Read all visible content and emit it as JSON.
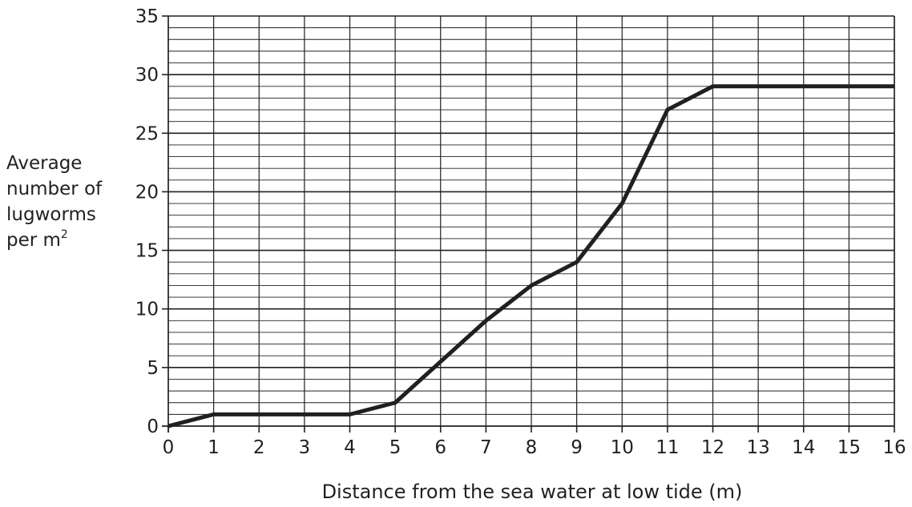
{
  "chart_data": {
    "type": "line",
    "title": "",
    "xlabel": "Distance from the sea water at low tide (m)",
    "ylabel_lines": [
      "Average",
      "number of",
      "lugworms",
      "per m"
    ],
    "ylabel_superscript": "2",
    "xlim": [
      0,
      16
    ],
    "ylim": [
      0,
      35
    ],
    "x_ticks": [
      0,
      1,
      2,
      3,
      4,
      5,
      6,
      7,
      8,
      9,
      10,
      11,
      12,
      13,
      14,
      15,
      16
    ],
    "y_ticks": [
      0,
      5,
      10,
      15,
      20,
      25,
      30,
      35
    ],
    "grid": true,
    "minor_grid_y_step": 1,
    "legend": "none",
    "line_color": "#231f20",
    "series": [
      {
        "x": [
          0,
          1,
          4,
          5,
          7,
          8,
          9,
          10,
          11,
          12,
          16
        ],
        "y": [
          0,
          1,
          1,
          2,
          9,
          12,
          14,
          19,
          27,
          29,
          29
        ]
      }
    ]
  }
}
